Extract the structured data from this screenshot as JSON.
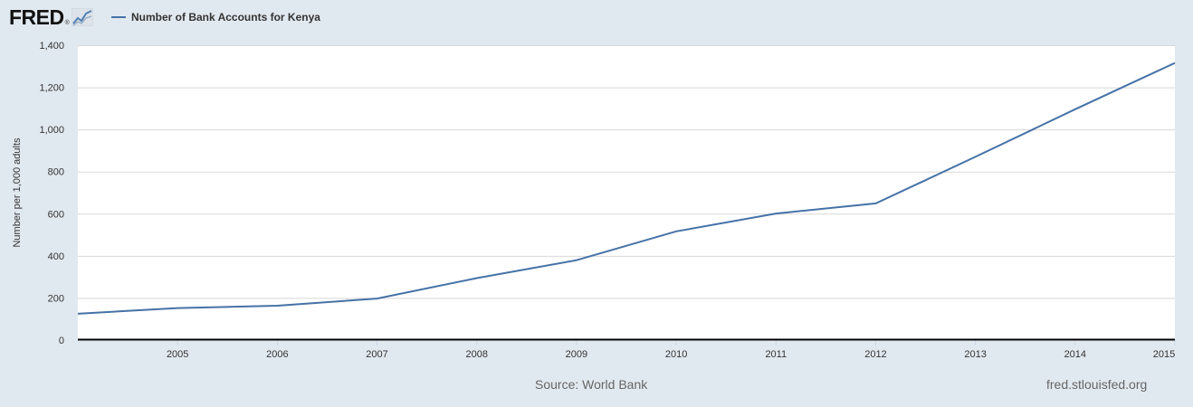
{
  "header": {
    "logo_text": "FRED",
    "logo_reg": "®",
    "logo_icon": "fred-graph-icon"
  },
  "colors": {
    "series": "#4572a7",
    "background": "#e1e9f0",
    "plot_background": "#ffffff",
    "grid": "#d8d8d8",
    "axis": "#000000"
  },
  "footer": {
    "source": "Source: World Bank",
    "site": "fred.stlouisfed.org"
  },
  "chart_data": {
    "type": "line",
    "title": "",
    "xlabel": "",
    "ylabel": "Number per 1,000 adults",
    "xlim": [
      2004,
      2015
    ],
    "ylim": [
      0,
      1400
    ],
    "x_ticks": [
      2005,
      2006,
      2007,
      2008,
      2009,
      2010,
      2011,
      2012,
      2013,
      2014,
      2015
    ],
    "x_tick_labels": [
      "2005",
      "2006",
      "2007",
      "2008",
      "2009",
      "2010",
      "2011",
      "2012",
      "2013",
      "2014",
      "2015"
    ],
    "y_ticks": [
      0,
      200,
      400,
      600,
      800,
      1000,
      1200,
      1400
    ],
    "y_tick_labels": [
      "0",
      "200",
      "400",
      "600",
      "800",
      "1,000",
      "1,200",
      "1,400"
    ],
    "grid": true,
    "legend_position": "top-left",
    "series": [
      {
        "name": "Number of Bank Accounts for Kenya",
        "x": [
          2004,
          2005,
          2006,
          2007,
          2008,
          2009,
          2010,
          2011,
          2012,
          2013,
          2014,
          2015
        ],
        "y": [
          125,
          152,
          163,
          197,
          294,
          379,
          516,
          601,
          649,
          870,
          1096,
          1316
        ]
      }
    ]
  }
}
